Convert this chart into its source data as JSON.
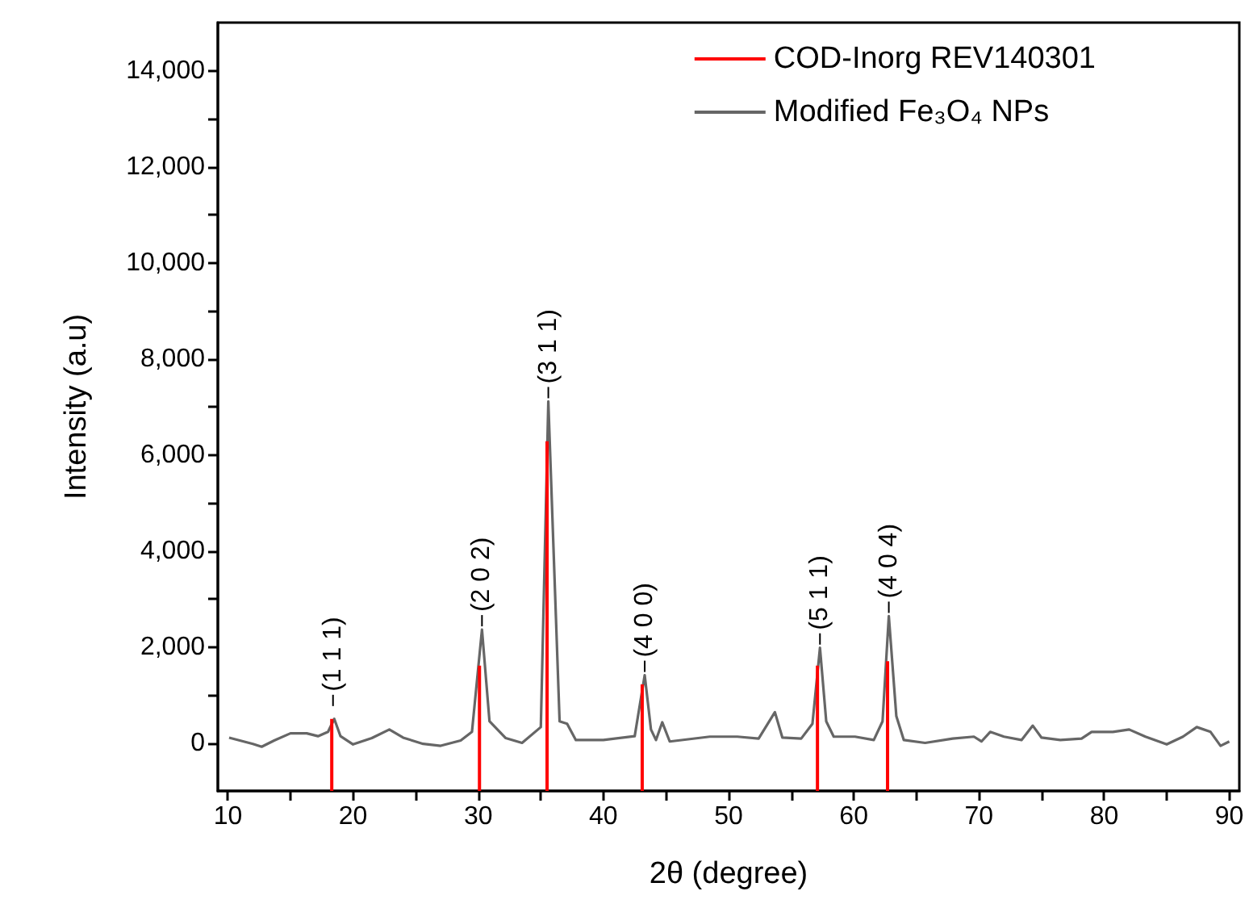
{
  "chart_data": {
    "type": "line",
    "xlabel": "2θ (degree)",
    "ylabel": "Intensity (a.u)",
    "xlim": [
      9.2,
      90.8
    ],
    "ylim": [
      -1000,
      15000
    ],
    "xticks": [
      10,
      {
        "value": 15,
        "label": null
      },
      20,
      {
        "value": 25,
        "label": null
      },
      30,
      {
        "value": 35,
        "label": null
      },
      40,
      {
        "value": 45,
        "label": null
      },
      50,
      {
        "value": 55,
        "label": null
      },
      60,
      {
        "value": 65,
        "label": null
      },
      70,
      {
        "value": 75,
        "label": null
      },
      80,
      {
        "value": 85,
        "label": null
      },
      90
    ],
    "yticks": [
      0,
      {
        "value": 1000,
        "label": null
      },
      {
        "value": 2000,
        "label": "2,000"
      },
      {
        "value": 3000,
        "label": null
      },
      {
        "value": 4000,
        "label": "4,000"
      },
      {
        "value": 5000,
        "label": null
      },
      {
        "value": 6000,
        "label": "6,000"
      },
      {
        "value": 7000,
        "label": null
      },
      {
        "value": 8000,
        "label": "8,000"
      },
      {
        "value": 9000,
        "label": null
      },
      {
        "value": 10000,
        "label": "10,000"
      },
      {
        "value": 11000,
        "label": null
      },
      {
        "value": 12000,
        "label": "12,000"
      },
      {
        "value": 13000,
        "label": null
      },
      {
        "value": 14000,
        "label": "14,000"
      }
    ],
    "legend": "top right",
    "marker": "none",
    "line_style": "solid",
    "series": [
      {
        "name": "COD-Inorg REV140301",
        "type": "bar",
        "color": "#ff0000",
        "x": [
          18.3,
          30.1,
          35.5,
          43.1,
          57.1,
          62.7
        ],
        "base": [
          -1000,
          -1000,
          -1000,
          -1000,
          -1000,
          -1000
        ],
        "values": [
          1500,
          2610,
          7280,
          2220,
          2610,
          2700
        ]
      },
      {
        "name": "Modified Fe₃O₄ NPs",
        "color": "#666666",
        "x": [
          10.1,
          12.0,
          12.7,
          13.7,
          15.0,
          16.3,
          17.2,
          18.0,
          18.5,
          19.0,
          20.0,
          21.5,
          22.9,
          24.0,
          25.6,
          27.0,
          28.6,
          29.5,
          30.3,
          30.9,
          32.2,
          33.5,
          35.0,
          35.6,
          36.5,
          37.1,
          37.8,
          40.0,
          42.5,
          43.3,
          43.8,
          44.2,
          44.7,
          45.3,
          48.5,
          50.7,
          52.4,
          53.7,
          54.3,
          55.8,
          56.7,
          57.3,
          57.8,
          58.4,
          60.1,
          61.6,
          62.3,
          62.8,
          63.4,
          64.0,
          65.7,
          67.9,
          69.6,
          70.2,
          70.9,
          72.0,
          73.4,
          74.3,
          75.0,
          76.5,
          78.2,
          79.0,
          80.7,
          82.0,
          83.3,
          85.0,
          86.3,
          87.4,
          88.5,
          89.3,
          90.0
        ],
        "values": [
          110,
          -20,
          -80,
          50,
          200,
          200,
          140,
          230,
          500,
          140,
          -30,
          100,
          280,
          110,
          -20,
          -60,
          50,
          230,
          2360,
          450,
          100,
          0,
          330,
          7110,
          450,
          400,
          60,
          60,
          140,
          1410,
          280,
          60,
          430,
          30,
          130,
          130,
          90,
          640,
          110,
          90,
          400,
          1980,
          450,
          130,
          130,
          60,
          450,
          2640,
          560,
          60,
          0,
          90,
          130,
          30,
          230,
          130,
          60,
          360,
          110,
          60,
          90,
          230,
          230,
          280,
          130,
          -30,
          130,
          330,
          230,
          -60,
          30
        ]
      }
    ],
    "annotations": [
      {
        "text": "(1 1 1)",
        "x": 18.4,
        "y": 700
      },
      {
        "text": "(2 0 2)",
        "x": 30.3,
        "y": 2360
      },
      {
        "text": "(3 1 1)",
        "x": 35.6,
        "y": 7110
      },
      {
        "text": "(4 0 0)",
        "x": 43.3,
        "y": 1410
      },
      {
        "text": "(5 1 1)",
        "x": 57.3,
        "y": 1980
      },
      {
        "text": "(4 0 4)",
        "x": 62.8,
        "y": 2640
      }
    ]
  }
}
